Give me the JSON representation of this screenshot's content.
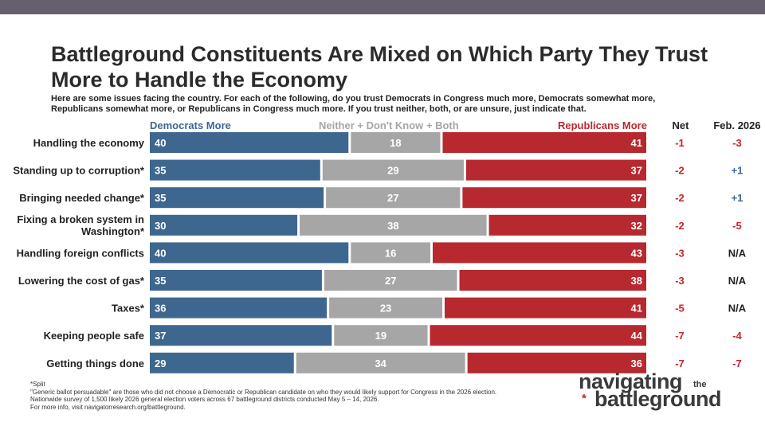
{
  "title": "Battleground Constituents Are Mixed on Which Party They Trust More to Handle the Economy",
  "subtitle": "Here are some issues facing the country. For each of the following, do you trust Democrats in Congress much more, Democrats somewhat more, Republicans somewhat more, or Republicans in Congress much more. If you trust neither, both, or are unsure, just indicate that.",
  "headers": {
    "dem": "Democrats More",
    "neither": "Neither + Don't Know + Both",
    "rep": "Republicans More",
    "net": "Net",
    "feb": "Feb. 2026"
  },
  "colors": {
    "dem": "#3e6790",
    "neither": "#a6a6a6",
    "rep": "#b8292f",
    "blue_text": "#3e6790",
    "red_text": "#cc2229"
  },
  "chart_data": {
    "type": "bar",
    "orientation": "horizontal-stacked",
    "categories": [
      "Handling the economy",
      "Standing up to corruption*",
      "Bringing needed change*",
      "Fixing a broken system in Washington*",
      "Handling foreign conflicts",
      "Lowering the cost of gas*",
      "Taxes*",
      "Keeping people safe",
      "Getting things done"
    ],
    "series": [
      {
        "name": "Democrats More",
        "values": [
          40,
          35,
          35,
          30,
          40,
          35,
          36,
          37,
          29
        ]
      },
      {
        "name": "Neither + Don't Know + Both",
        "values": [
          18,
          29,
          27,
          38,
          16,
          27,
          23,
          19,
          34
        ]
      },
      {
        "name": "Republicans More",
        "values": [
          41,
          37,
          37,
          32,
          43,
          38,
          41,
          44,
          36
        ]
      }
    ],
    "net": [
      "-1",
      "-2",
      "-2",
      "-2",
      "-3",
      "-3",
      "-5",
      "-7",
      "-7"
    ],
    "feb_2026": [
      "-3",
      "+1",
      "+1",
      "-5",
      "N/A",
      "N/A",
      "N/A",
      "-4",
      "-7"
    ]
  },
  "footnotes": [
    "*Split",
    "\"Generic ballot persuadable\" are those who did not choose a Democratic or Republican candidate on who they would likely support for Congress in the 2026 election.",
    "Nationwide survey of 1,500 likely 2026 general election voters across 67 battleground districts conducted May 5 – 14, 2026.",
    "For more info, visit navigatorresearch.org/battleground."
  ],
  "logo": {
    "line1": "navigating",
    "the": "the",
    "star": "*",
    "line2": "battleground"
  }
}
